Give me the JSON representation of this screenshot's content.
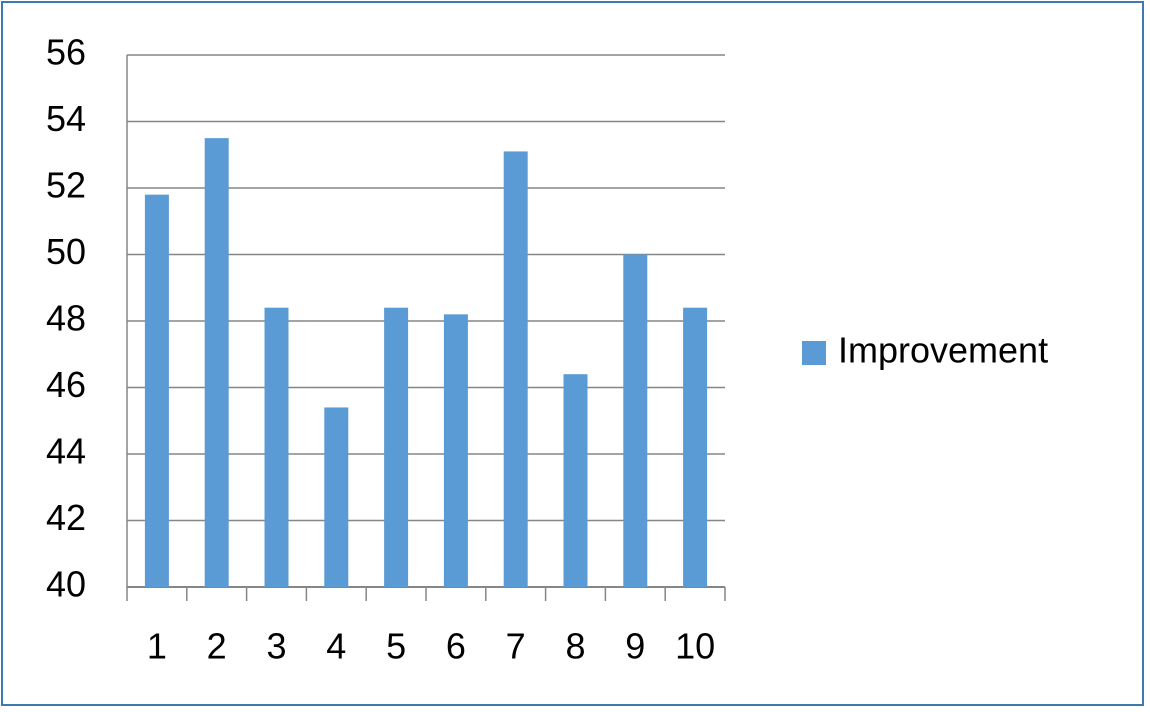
{
  "chart_data": {
    "type": "bar",
    "categories": [
      "1",
      "2",
      "3",
      "4",
      "5",
      "6",
      "7",
      "8",
      "9",
      "10"
    ],
    "series": [
      {
        "name": "Improvement",
        "color": "#5b9bd5",
        "values": [
          51.8,
          53.5,
          48.4,
          45.4,
          48.4,
          48.2,
          53.1,
          46.4,
          50,
          48.4
        ]
      }
    ],
    "ylim": [
      40,
      56
    ],
    "yticks": [
      40,
      42,
      44,
      46,
      48,
      50,
      52,
      54,
      56
    ],
    "grid": true,
    "legend": "right"
  }
}
